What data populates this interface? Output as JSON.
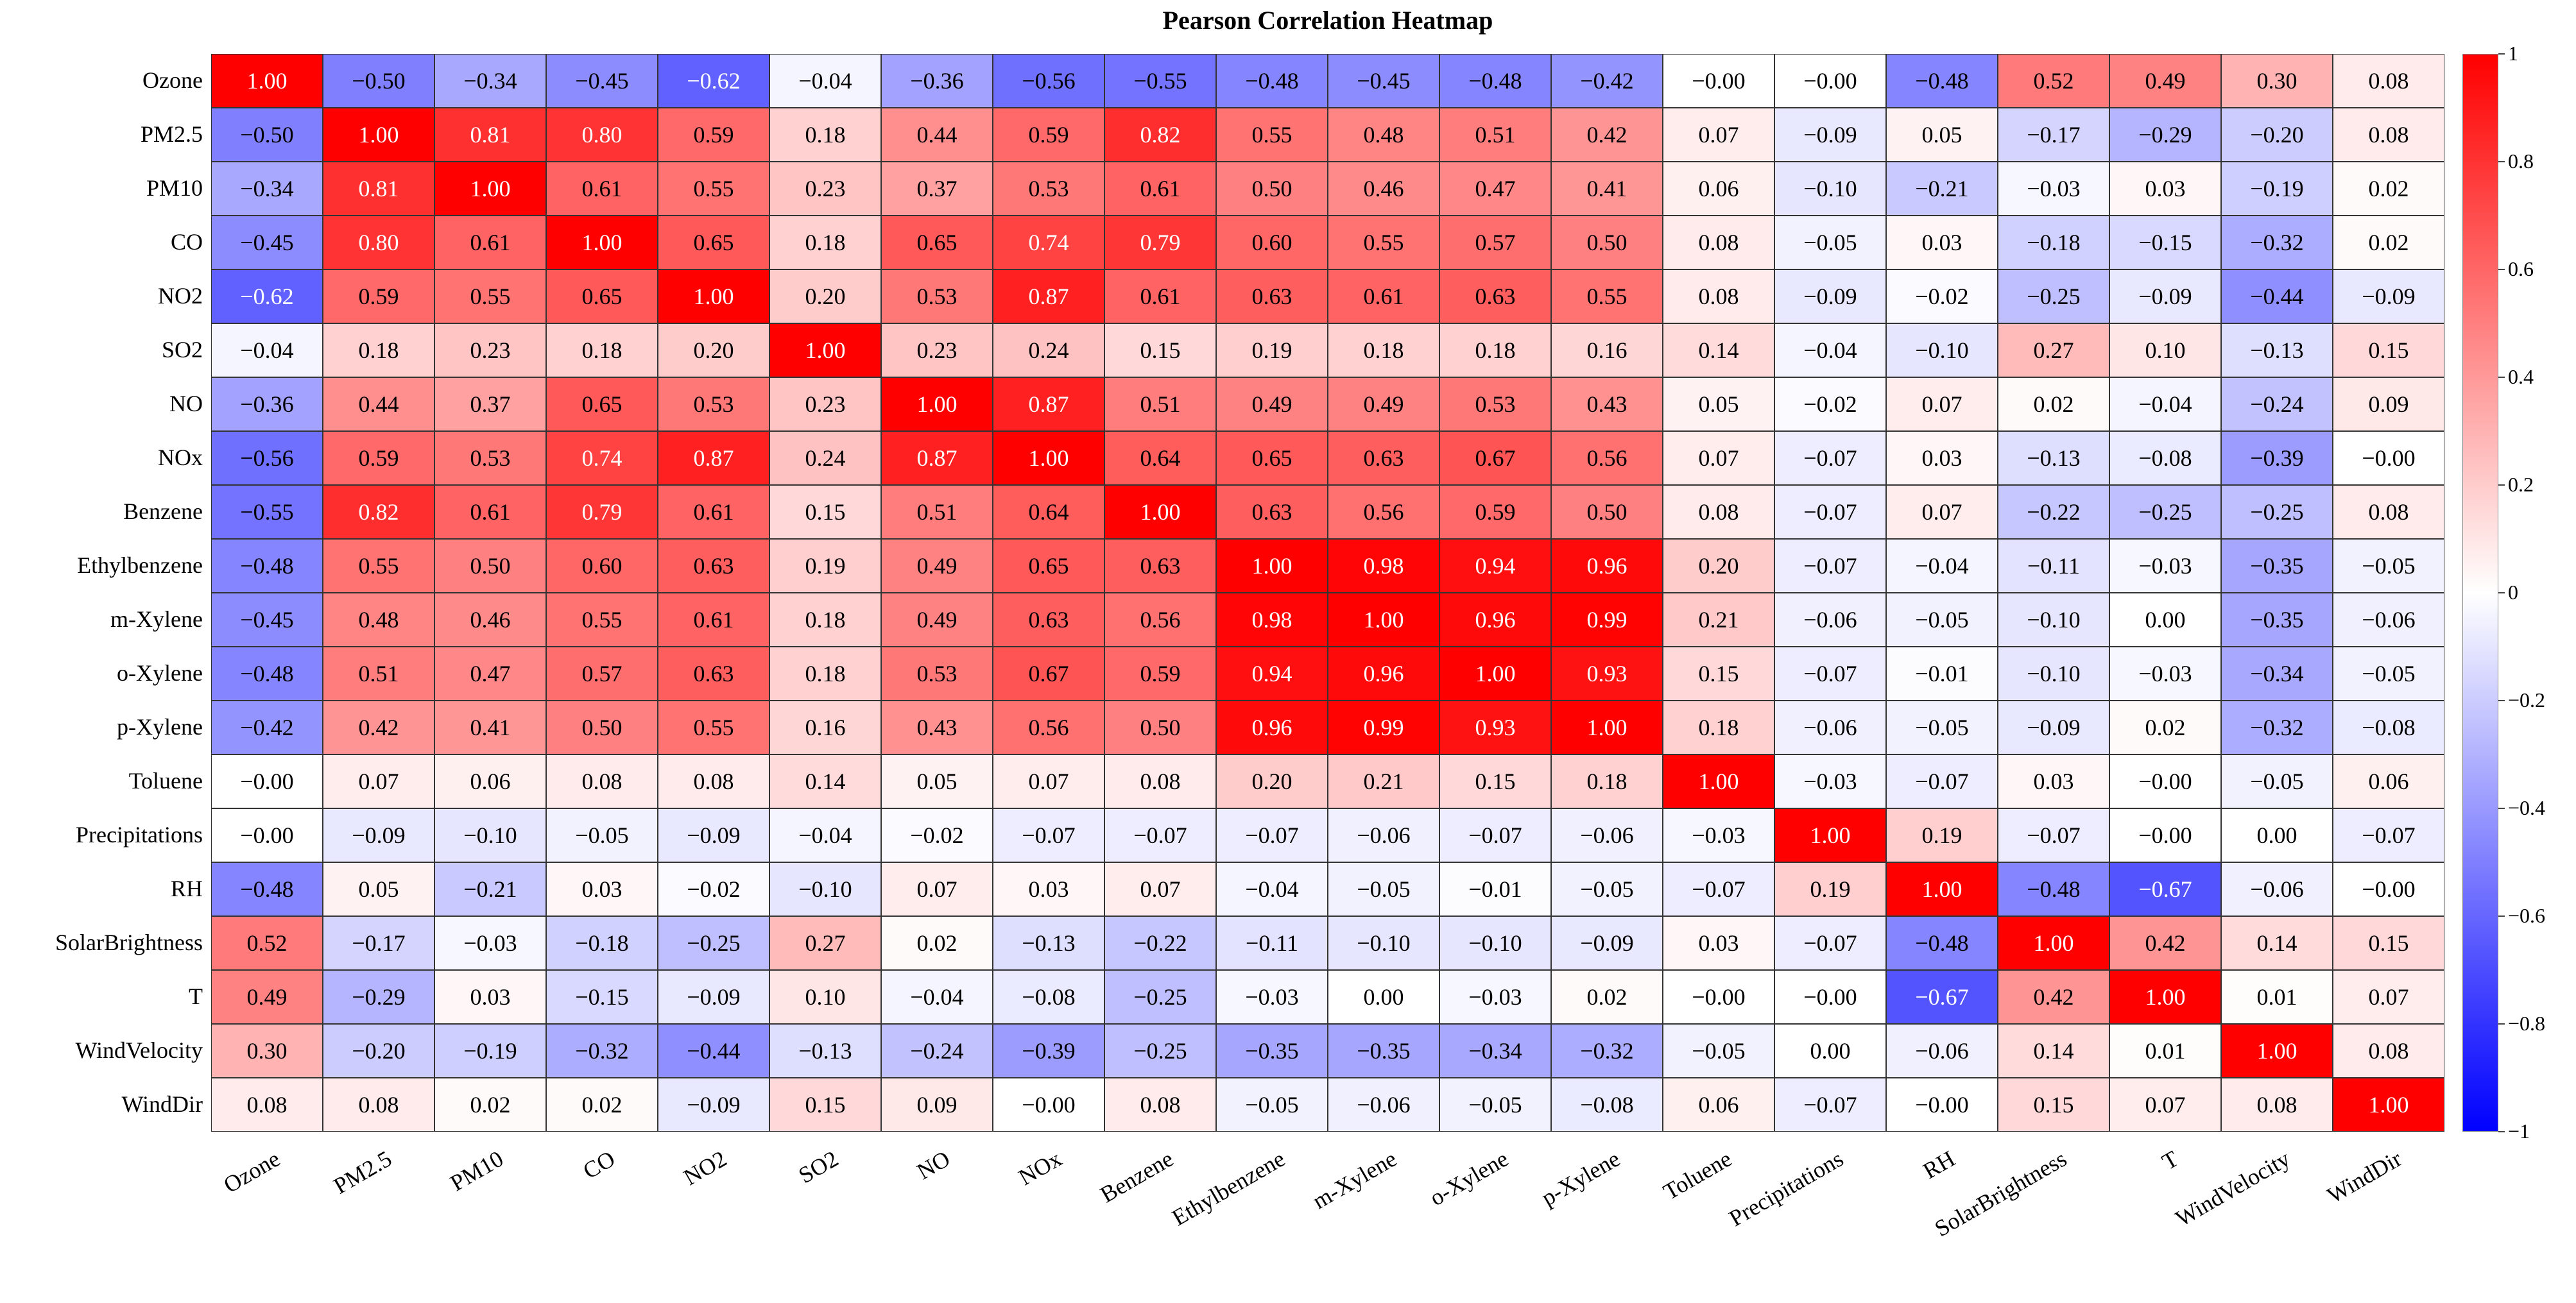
{
  "chart_data": {
    "type": "heatmap",
    "title": "Pearson Correlation Heatmap",
    "variables": [
      "Ozone",
      "PM2.5",
      "PM10",
      "CO",
      "NO2",
      "SO2",
      "NO",
      "NOx",
      "Benzene",
      "Ethylbenzene",
      "m-Xylene",
      "o-Xylene",
      "p-Xylene",
      "Toluene",
      "Precipitations",
      "RH",
      "SolarBrightness",
      "T",
      "WindVelocity",
      "WindDir"
    ],
    "matrix": [
      [
        1.0,
        -0.5,
        -0.34,
        -0.45,
        -0.62,
        -0.04,
        -0.36,
        -0.56,
        -0.55,
        -0.48,
        -0.45,
        -0.48,
        -0.42,
        -0.0,
        -0.0,
        -0.48,
        0.52,
        0.49,
        0.3,
        0.08
      ],
      [
        -0.5,
        1.0,
        0.81,
        0.8,
        0.59,
        0.18,
        0.44,
        0.59,
        0.82,
        0.55,
        0.48,
        0.51,
        0.42,
        0.07,
        -0.09,
        0.05,
        -0.17,
        -0.29,
        -0.2,
        0.08
      ],
      [
        -0.34,
        0.81,
        1.0,
        0.61,
        0.55,
        0.23,
        0.37,
        0.53,
        0.61,
        0.5,
        0.46,
        0.47,
        0.41,
        0.06,
        -0.1,
        -0.21,
        -0.03,
        0.03,
        -0.19,
        0.02
      ],
      [
        -0.45,
        0.8,
        0.61,
        1.0,
        0.65,
        0.18,
        0.65,
        0.74,
        0.79,
        0.6,
        0.55,
        0.57,
        0.5,
        0.08,
        -0.05,
        0.03,
        -0.18,
        -0.15,
        -0.32,
        0.02
      ],
      [
        -0.62,
        0.59,
        0.55,
        0.65,
        1.0,
        0.2,
        0.53,
        0.87,
        0.61,
        0.63,
        0.61,
        0.63,
        0.55,
        0.08,
        -0.09,
        -0.02,
        -0.25,
        -0.09,
        -0.44,
        -0.09
      ],
      [
        -0.04,
        0.18,
        0.23,
        0.18,
        0.2,
        1.0,
        0.23,
        0.24,
        0.15,
        0.19,
        0.18,
        0.18,
        0.16,
        0.14,
        -0.04,
        -0.1,
        0.27,
        0.1,
        -0.13,
        0.15
      ],
      [
        -0.36,
        0.44,
        0.37,
        0.65,
        0.53,
        0.23,
        1.0,
        0.87,
        0.51,
        0.49,
        0.49,
        0.53,
        0.43,
        0.05,
        -0.02,
        0.07,
        0.02,
        -0.04,
        -0.24,
        0.09
      ],
      [
        -0.56,
        0.59,
        0.53,
        0.74,
        0.87,
        0.24,
        0.87,
        1.0,
        0.64,
        0.65,
        0.63,
        0.67,
        0.56,
        0.07,
        -0.07,
        0.03,
        -0.13,
        -0.08,
        -0.39,
        -0.0
      ],
      [
        -0.55,
        0.82,
        0.61,
        0.79,
        0.61,
        0.15,
        0.51,
        0.64,
        1.0,
        0.63,
        0.56,
        0.59,
        0.5,
        0.08,
        -0.07,
        0.07,
        -0.22,
        -0.25,
        -0.25,
        0.08
      ],
      [
        -0.48,
        0.55,
        0.5,
        0.6,
        0.63,
        0.19,
        0.49,
        0.65,
        0.63,
        1.0,
        0.98,
        0.94,
        0.96,
        0.2,
        -0.07,
        -0.04,
        -0.11,
        -0.03,
        -0.35,
        -0.05
      ],
      [
        -0.45,
        0.48,
        0.46,
        0.55,
        0.61,
        0.18,
        0.49,
        0.63,
        0.56,
        0.98,
        1.0,
        0.96,
        0.99,
        0.21,
        -0.06,
        -0.05,
        -0.1,
        0.0,
        -0.35,
        -0.06
      ],
      [
        -0.48,
        0.51,
        0.47,
        0.57,
        0.63,
        0.18,
        0.53,
        0.67,
        0.59,
        0.94,
        0.96,
        1.0,
        0.93,
        0.15,
        -0.07,
        -0.01,
        -0.1,
        -0.03,
        -0.34,
        -0.05
      ],
      [
        -0.42,
        0.42,
        0.41,
        0.5,
        0.55,
        0.16,
        0.43,
        0.56,
        0.5,
        0.96,
        0.99,
        0.93,
        1.0,
        0.18,
        -0.06,
        -0.05,
        -0.09,
        0.02,
        -0.32,
        -0.08
      ],
      [
        -0.0,
        0.07,
        0.06,
        0.08,
        0.08,
        0.14,
        0.05,
        0.07,
        0.08,
        0.2,
        0.21,
        0.15,
        0.18,
        1.0,
        -0.03,
        -0.07,
        0.03,
        -0.0,
        -0.05,
        0.06
      ],
      [
        -0.0,
        -0.09,
        -0.1,
        -0.05,
        -0.09,
        -0.04,
        -0.02,
        -0.07,
        -0.07,
        -0.07,
        -0.06,
        -0.07,
        -0.06,
        -0.03,
        1.0,
        0.19,
        -0.07,
        -0.0,
        0.0,
        -0.07
      ],
      [
        -0.48,
        0.05,
        -0.21,
        0.03,
        -0.02,
        -0.1,
        0.07,
        0.03,
        0.07,
        -0.04,
        -0.05,
        -0.01,
        -0.05,
        -0.07,
        0.19,
        1.0,
        -0.48,
        -0.67,
        -0.06,
        -0.0
      ],
      [
        0.52,
        -0.17,
        -0.03,
        -0.18,
        -0.25,
        0.27,
        0.02,
        -0.13,
        -0.22,
        -0.11,
        -0.1,
        -0.1,
        -0.09,
        0.03,
        -0.07,
        -0.48,
        1.0,
        0.42,
        0.14,
        0.15
      ],
      [
        0.49,
        -0.29,
        0.03,
        -0.15,
        -0.09,
        0.1,
        -0.04,
        -0.08,
        -0.25,
        -0.03,
        0.0,
        -0.03,
        0.02,
        -0.0,
        -0.0,
        -0.67,
        0.42,
        1.0,
        0.01,
        0.07
      ],
      [
        0.3,
        -0.2,
        -0.19,
        -0.32,
        -0.44,
        -0.13,
        -0.24,
        -0.39,
        -0.25,
        -0.35,
        -0.35,
        -0.34,
        -0.32,
        -0.05,
        0.0,
        -0.06,
        0.14,
        0.01,
        1.0,
        0.08
      ],
      [
        0.08,
        0.08,
        0.02,
        0.02,
        -0.09,
        0.15,
        0.09,
        -0.0,
        0.08,
        -0.05,
        -0.06,
        -0.05,
        -0.08,
        0.06,
        -0.07,
        -0.0,
        0.15,
        0.07,
        0.08,
        1.0
      ]
    ],
    "value_range": [
      -1,
      1
    ],
    "colormap": {
      "negative": "#0000ff",
      "zero": "#ffffff",
      "positive": "#ff0000"
    },
    "colorbar": {
      "position": "right",
      "ticks": [
        "1",
        "0.8",
        "0.6",
        "0.4",
        "0.2",
        "0",
        "−0.2",
        "−0.4",
        "−0.6",
        "−0.8",
        "−1"
      ]
    }
  }
}
